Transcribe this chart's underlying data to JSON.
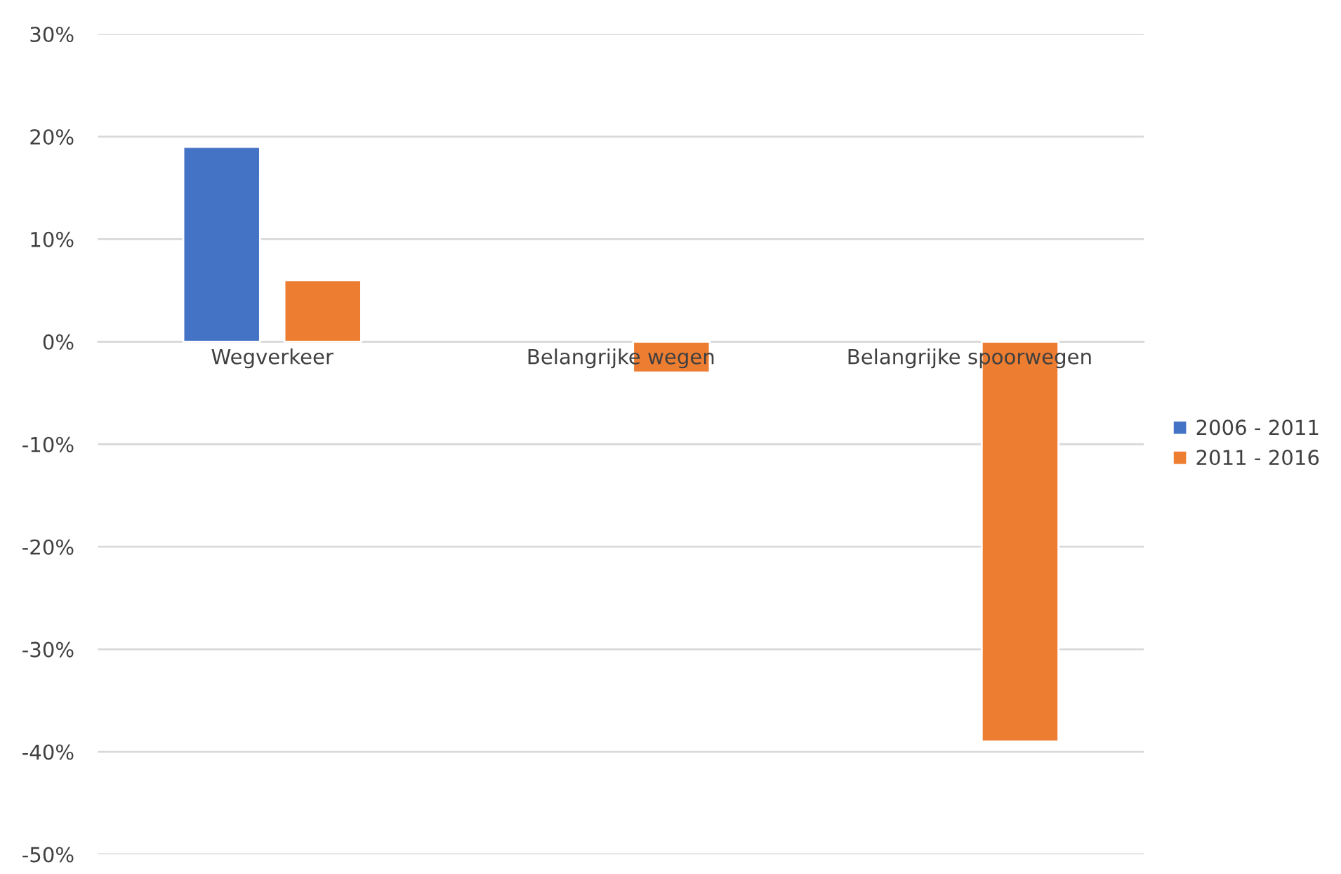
{
  "chart_data": {
    "type": "bar",
    "categories": [
      "Wegverkeer",
      "Belangrijke wegen",
      "Belangrijke spoorwegen"
    ],
    "series": [
      {
        "name": "2006 - 2011",
        "color": "#4472c4",
        "values": [
          19,
          null,
          null
        ]
      },
      {
        "name": "2011 - 2016",
        "color": "#ed7d31",
        "values": [
          6,
          -3,
          -39
        ]
      }
    ],
    "ylim": [
      -50,
      30
    ],
    "yticks": [
      {
        "value": 30,
        "label": "30%"
      },
      {
        "value": 20,
        "label": "20%"
      },
      {
        "value": 10,
        "label": "10%"
      },
      {
        "value": 0,
        "label": "0%"
      },
      {
        "value": -10,
        "label": "-10%"
      },
      {
        "value": -20,
        "label": "-20%"
      },
      {
        "value": -30,
        "label": "-30%"
      },
      {
        "value": -40,
        "label": "-40%"
      },
      {
        "value": -50,
        "label": "-50%"
      }
    ],
    "grid": "y",
    "legend": "right"
  }
}
